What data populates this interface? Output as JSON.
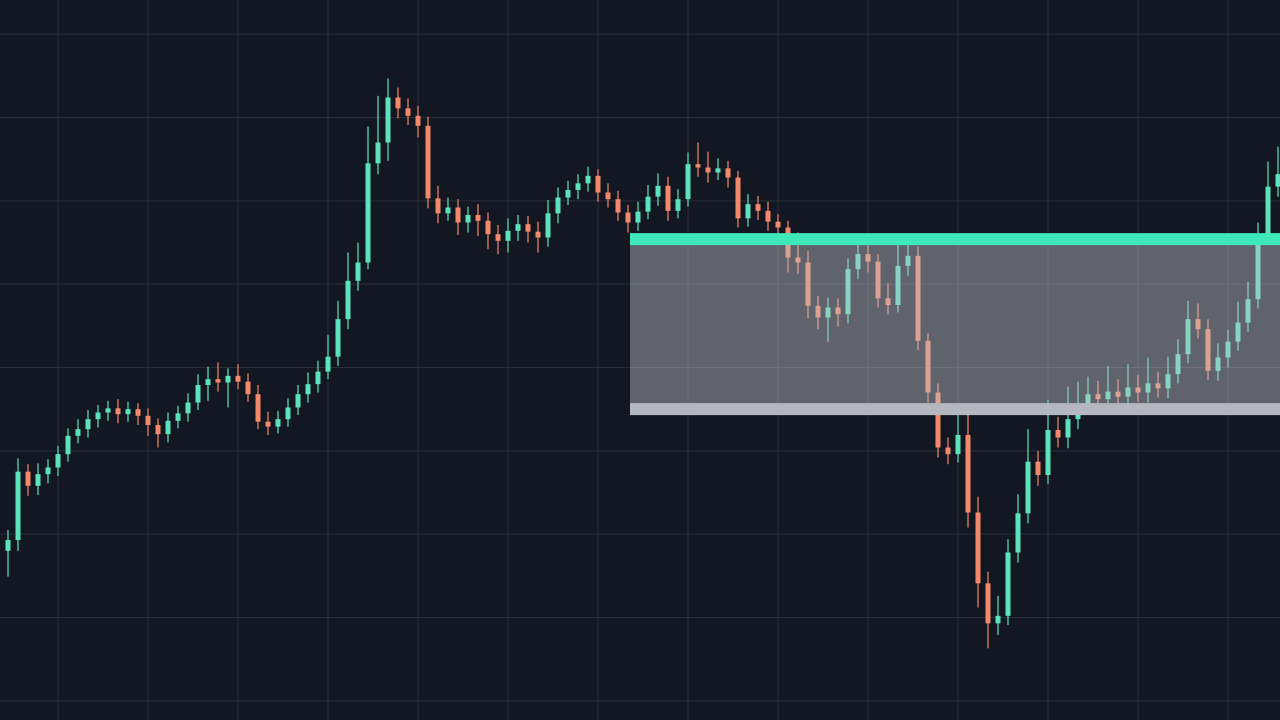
{
  "chart_data": {
    "type": "candlestick",
    "up_color": "#5ce3bd",
    "down_color": "#f2896b",
    "grid": true,
    "grid_color": "#2a2e3a",
    "background": "#131722",
    "xlim": [
      -0.8,
      127.2
    ],
    "xticks": [
      5,
      14,
      23,
      32,
      41,
      50,
      59,
      68,
      77,
      86,
      95,
      104,
      113,
      122
    ],
    "ylim": [
      -2.3,
      84.1
    ],
    "yticks": [
      0,
      10,
      20,
      30,
      40,
      50,
      60,
      70,
      80
    ],
    "open": [
      18.0,
      19.3,
      27.5,
      25.8,
      27.2,
      28.0,
      29.6,
      31.8,
      32.6,
      33.8,
      34.6,
      35.1,
      34.4,
      35.0,
      34.2,
      33.1,
      32.0,
      33.6,
      34.5,
      35.8,
      37.9,
      38.6,
      38.2,
      39.0,
      38.3,
      36.8,
      33.5,
      32.9,
      33.8,
      35.2,
      36.8,
      38.0,
      39.5,
      41.3,
      45.8,
      50.4,
      52.6,
      64.5,
      67.0,
      72.4,
      71.1,
      70.2,
      69.0,
      60.3,
      58.5,
      59.2,
      57.4,
      58.3,
      57.6,
      56.0,
      55.2,
      56.4,
      57.2,
      56.3,
      55.6,
      58.5,
      60.4,
      61.3,
      62.1,
      63.0,
      61.0,
      60.2,
      58.6,
      57.4,
      58.7,
      60.5,
      61.8,
      58.8,
      60.2,
      64.4,
      64.0,
      63.4,
      63.9,
      62.8,
      57.9,
      59.6,
      58.8,
      57.5,
      56.8,
      53.2,
      52.6,
      47.4,
      46.0,
      47.2,
      46.4,
      51.8,
      53.6,
      52.7,
      48.3,
      47.5,
      52.2,
      53.4,
      43.2,
      37.0,
      30.4,
      29.6,
      31.9,
      22.6,
      14.1,
      9.3,
      10.2,
      17.8,
      22.5,
      28.7,
      27.1,
      32.5,
      31.6,
      33.8,
      35.6,
      36.8,
      36.2,
      37.1,
      36.5,
      37.6,
      37.0,
      38.1,
      37.5,
      39.2,
      41.6,
      45.8,
      44.6,
      39.6,
      41.2,
      43.1,
      45.4,
      48.2,
      55.9,
      61.7
    ],
    "high": [
      20.5,
      29.1,
      28.4,
      28.5,
      29.0,
      30.6,
      32.7,
      33.8,
      34.9,
      35.5,
      36.0,
      36.2,
      35.9,
      35.7,
      35.1,
      33.9,
      34.6,
      35.4,
      36.9,
      39.2,
      40.1,
      40.6,
      39.9,
      40.4,
      39.3,
      37.9,
      34.7,
      34.8,
      36.3,
      37.9,
      39.4,
      40.8,
      43.9,
      48.0,
      53.8,
      55.0,
      68.9,
      72.6,
      74.7,
      73.6,
      72.3,
      71.4,
      70.1,
      61.8,
      60.4,
      60.2,
      59.3,
      59.6,
      58.6,
      57.1,
      57.9,
      58.3,
      58.2,
      57.5,
      60.1,
      61.6,
      62.4,
      63.2,
      64.1,
      63.8,
      62.1,
      61.2,
      59.5,
      59.9,
      61.9,
      63.3,
      62.9,
      61.4,
      65.8,
      67.0,
      65.9,
      65.1,
      64.8,
      63.6,
      60.8,
      60.6,
      59.9,
      58.4,
      57.6,
      56.2,
      54.0,
      48.6,
      48.4,
      48.3,
      53.1,
      55.4,
      55.2,
      53.6,
      50.1,
      55.2,
      55.3,
      54.5,
      44.1,
      38.1,
      31.6,
      35.0,
      34.3,
      24.5,
      15.5,
      12.6,
      19.4,
      24.8,
      32.6,
      30.0,
      36.1,
      34.1,
      37.7,
      38.3,
      38.9,
      38.4,
      40.2,
      38.6,
      40.4,
      39.1,
      41.2,
      39.5,
      41.3,
      43.4,
      48.0,
      47.7,
      45.8,
      42.9,
      44.5,
      47.9,
      50.3,
      57.4,
      64.7,
      66.5
    ],
    "low": [
      14.9,
      18.0,
      24.6,
      24.7,
      26.1,
      27.0,
      28.7,
      30.9,
      31.6,
      32.8,
      33.6,
      33.3,
      33.5,
      33.1,
      31.8,
      30.4,
      31.0,
      32.7,
      33.5,
      34.9,
      36.0,
      37.1,
      35.2,
      37.4,
      35.9,
      32.6,
      31.9,
      32.1,
      32.9,
      34.3,
      35.8,
      37.0,
      38.6,
      40.2,
      44.6,
      49.2,
      51.8,
      63.2,
      64.8,
      69.9,
      69.1,
      67.6,
      59.1,
      57.3,
      57.6,
      55.9,
      56.2,
      55.8,
      54.2,
      53.6,
      53.8,
      55.2,
      55.0,
      53.8,
      54.5,
      57.3,
      59.5,
      60.2,
      61.1,
      59.9,
      59.2,
      57.6,
      56.2,
      56.4,
      57.8,
      59.4,
      57.6,
      57.9,
      59.3,
      62.9,
      62.2,
      62.5,
      61.6,
      56.8,
      56.9,
      57.7,
      56.4,
      55.6,
      51.4,
      51.2,
      45.9,
      44.6,
      43.1,
      44.9,
      45.3,
      50.6,
      51.4,
      47.2,
      46.4,
      46.6,
      51.0,
      42.1,
      35.8,
      29.2,
      28.4,
      28.6,
      20.8,
      11.2,
      6.3,
      7.9,
      9.1,
      16.6,
      21.3,
      25.8,
      26.0,
      30.4,
      30.3,
      32.6,
      34.4,
      35.1,
      35.0,
      35.4,
      35.3,
      35.9,
      35.8,
      36.4,
      36.3,
      38.1,
      40.5,
      43.5,
      38.5,
      38.4,
      40.0,
      42.0,
      44.3,
      47.1,
      54.8,
      60.5
    ],
    "close": [
      19.3,
      27.5,
      25.8,
      27.2,
      28.0,
      29.6,
      31.8,
      32.6,
      33.8,
      34.6,
      35.1,
      34.4,
      35.0,
      34.2,
      33.1,
      32.0,
      33.6,
      34.5,
      35.8,
      37.9,
      38.6,
      38.2,
      39.0,
      38.3,
      36.8,
      33.5,
      32.9,
      33.8,
      35.2,
      36.8,
      38.0,
      39.5,
      41.3,
      45.8,
      50.4,
      52.6,
      64.5,
      67.0,
      72.4,
      71.1,
      70.2,
      69.0,
      60.3,
      58.5,
      59.2,
      57.4,
      58.3,
      57.6,
      56.0,
      55.2,
      56.4,
      57.2,
      56.3,
      55.6,
      58.5,
      60.4,
      61.3,
      62.1,
      63.0,
      61.0,
      60.2,
      58.6,
      57.4,
      58.7,
      60.5,
      61.8,
      58.8,
      60.2,
      64.4,
      64.0,
      63.4,
      63.9,
      62.8,
      57.9,
      59.6,
      58.8,
      57.5,
      56.8,
      53.2,
      52.6,
      47.4,
      46.0,
      47.2,
      46.4,
      51.8,
      53.6,
      52.7,
      48.3,
      47.5,
      52.2,
      53.4,
      43.2,
      37.0,
      30.4,
      29.6,
      31.9,
      22.6,
      14.1,
      9.3,
      10.2,
      17.8,
      22.5,
      28.7,
      27.1,
      32.5,
      31.6,
      33.8,
      35.6,
      36.8,
      36.2,
      37.1,
      36.5,
      37.6,
      37.0,
      38.1,
      37.5,
      39.2,
      41.6,
      45.8,
      44.6,
      39.6,
      41.2,
      43.1,
      45.4,
      48.2,
      55.9,
      61.7,
      63.2
    ],
    "zone": {
      "top": 55.4,
      "bottom": 35.0,
      "start": 62.2,
      "top_color": "#3ee8b8",
      "bottom_color": "#b4b7bd",
      "fill": "rgba(190,192,197,0.45)"
    }
  }
}
